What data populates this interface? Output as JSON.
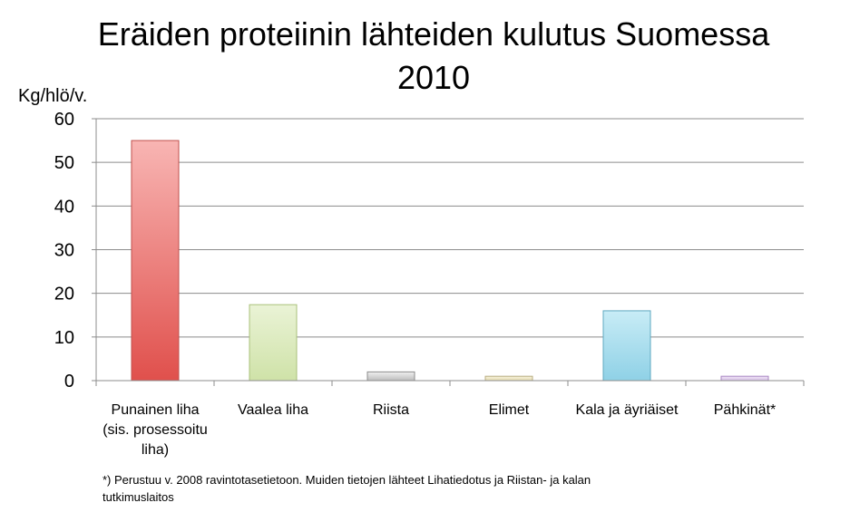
{
  "chart_data": {
    "type": "bar",
    "title_lines": [
      "Eräiden proteiinin lähteiden kulutus Suomessa",
      "2010"
    ],
    "ylabel": "Kg/hlö/v.",
    "ylim": [
      0,
      60
    ],
    "yticks": [
      0,
      10,
      20,
      30,
      40,
      50,
      60
    ],
    "grid": true,
    "categories": [
      [
        "Punainen liha",
        "(sis. prosessoitu",
        "liha)"
      ],
      [
        "Vaalea liha"
      ],
      [
        "Riista"
      ],
      [
        "Elimet"
      ],
      [
        "Kala ja äyriäiset"
      ],
      [
        "Pähkinät*"
      ]
    ],
    "values": [
      55,
      17.4,
      2,
      1,
      16,
      1
    ],
    "bar_colors": [
      {
        "top": "#f8b5b3",
        "bottom": "#e0504c",
        "stroke": "#c0504d"
      },
      {
        "top": "#eaf3d6",
        "bottom": "#cfe2a8",
        "stroke": "#a9c07a"
      },
      {
        "top": "#f0f0f0",
        "bottom": "#bdbdbd",
        "stroke": "#8c8c8c"
      },
      {
        "top": "#f7f2dd",
        "bottom": "#e6dcb0",
        "stroke": "#b8ad80"
      },
      {
        "top": "#c8ecf6",
        "bottom": "#8fd1e6",
        "stroke": "#5fa8c0"
      },
      {
        "top": "#f1e6f7",
        "bottom": "#d6bfe6",
        "stroke": "#a886c2"
      }
    ]
  },
  "footnote_lines": [
    "*) Perustuu v. 2008 ravintotasetietoon. Muiden tietojen lähteet Lihatiedotus ja Riistan- ja kalan",
    "tutkimuslaitos"
  ]
}
